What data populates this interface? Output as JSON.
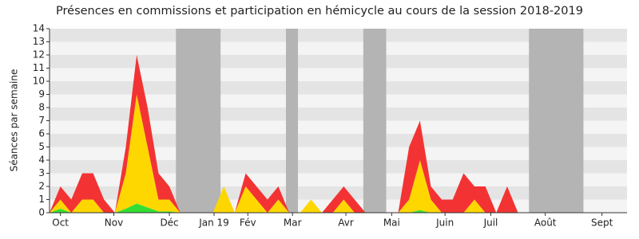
{
  "chart_data": {
    "type": "stacked-area",
    "title": "Présences en commissions et participation en hémicycle au cours de la session 2018-2019",
    "y_label": "Séances par semaine",
    "x": [
      0,
      1,
      2,
      3,
      4,
      5,
      6,
      7,
      8,
      9,
      10,
      11,
      12,
      13,
      14,
      15,
      16,
      17,
      18,
      19,
      20,
      21,
      22,
      23,
      24,
      25,
      26,
      27,
      28,
      29,
      30,
      31,
      32,
      33,
      34,
      35,
      36,
      37,
      38,
      39,
      40,
      41,
      42,
      43,
      44,
      45,
      46,
      47,
      48,
      49,
      50,
      51,
      52
    ],
    "series": [
      {
        "color": "#33dd33",
        "values": [
          0,
          0.3,
          0,
          0,
          0,
          0,
          0,
          0.3,
          0.7,
          0.4,
          0.1,
          0.1,
          0,
          0,
          0,
          0,
          0,
          0,
          0,
          0,
          0,
          0,
          0,
          0,
          0,
          0,
          0,
          0,
          0,
          0,
          0,
          0,
          0,
          0,
          0.2,
          0,
          0,
          0,
          0,
          0,
          0,
          0,
          0,
          0,
          0,
          0,
          0,
          0,
          0,
          0,
          0,
          0,
          0
        ]
      },
      {
        "color": "#ffd700",
        "values": [
          0,
          0.7,
          0,
          1,
          1,
          0,
          0,
          2.7,
          8.3,
          4.6,
          0.9,
          0.9,
          0,
          0,
          0,
          0,
          2,
          0,
          2,
          1,
          0,
          1,
          0,
          0,
          1,
          0,
          0,
          1,
          0,
          0,
          0,
          0,
          0,
          1,
          3.8,
          1,
          0,
          0,
          0,
          1,
          0,
          0,
          0,
          0,
          0,
          0,
          0,
          0,
          0,
          0,
          0,
          0,
          0
        ]
      },
      {
        "color": "#f33333",
        "values": [
          0,
          1,
          1,
          2,
          2,
          1,
          0,
          2,
          3,
          3,
          2,
          1,
          0,
          0,
          0,
          0,
          0,
          0,
          1,
          1,
          1,
          1,
          0,
          0,
          0,
          0,
          1,
          1,
          1,
          0,
          0,
          0,
          0,
          4,
          3,
          1,
          1,
          1,
          3,
          1,
          2,
          0,
          2,
          0,
          0,
          0,
          0,
          0,
          0,
          0,
          0,
          0,
          0
        ]
      }
    ],
    "shaded_ranges": [
      [
        11.6,
        15.7
      ],
      [
        21.7,
        22.8
      ],
      [
        28.8,
        30.9
      ],
      [
        44,
        49
      ]
    ],
    "shade_color": "#b4b4b4",
    "xlim": [
      0,
      53
    ],
    "xticks": [
      {
        "value": 1,
        "label": "Oct"
      },
      {
        "value": 5.9,
        "label": "Nov"
      },
      {
        "value": 11,
        "label": "Déc"
      },
      {
        "value": 15.1,
        "label": "Jan 19"
      },
      {
        "value": 18.2,
        "label": "Fév"
      },
      {
        "value": 22.3,
        "label": "Mar"
      },
      {
        "value": 27.2,
        "label": "Avr"
      },
      {
        "value": 31.4,
        "label": "Mai"
      },
      {
        "value": 36.3,
        "label": "Juin"
      },
      {
        "value": 40.5,
        "label": "Juil"
      },
      {
        "value": 45.5,
        "label": "Août"
      },
      {
        "value": 50.7,
        "label": "Sept"
      }
    ],
    "ylim": [
      0,
      14
    ],
    "yticks": [
      0,
      1,
      2,
      3,
      4,
      5,
      6,
      7,
      8,
      9,
      10,
      11,
      12,
      13,
      14
    ],
    "grid": true
  }
}
